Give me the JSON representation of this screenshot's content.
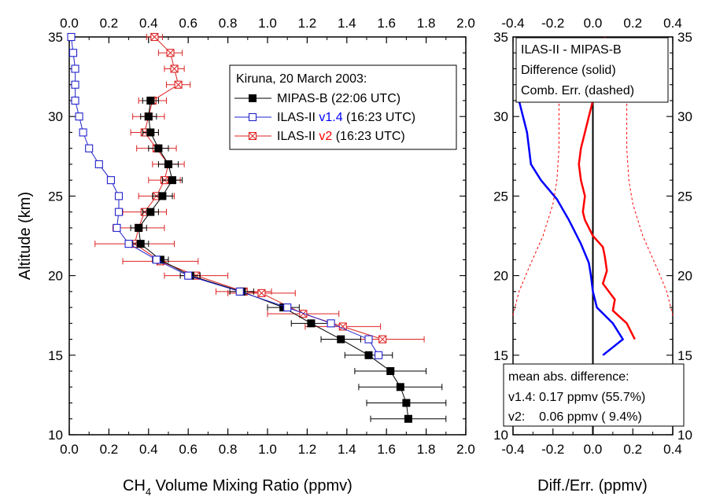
{
  "chart_data": [
    {
      "type": "line",
      "xlabel_main": "CH",
      "xlabel_sub": "4",
      "xlabel_rest": " Volume Mixing Ratio (ppmv)",
      "ylabel": "Altitude (km)",
      "xlim": [
        0.0,
        2.0
      ],
      "ylim": [
        10,
        35
      ],
      "x_ticks": [
        "0.0",
        "0.2",
        "0.4",
        "0.6",
        "0.8",
        "1.0",
        "1.2",
        "1.4",
        "1.6",
        "1.8",
        "2.0"
      ],
      "y_ticks": [
        "10",
        "15",
        "20",
        "25",
        "30",
        "35"
      ],
      "legend": {
        "title": "Kiruna, 20 March 2003:",
        "placement": "top-right",
        "entries": [
          {
            "label_a": "MIPAS-B (22:06 UTC)",
            "label_v": "",
            "label_b": "",
            "color": "#000000",
            "v_color": "#000000"
          },
          {
            "label_a": "ILAS-II ",
            "label_v": "v1.4",
            "label_b": " (16:23 UTC)",
            "color": "#2222cc",
            "v_color": "#0000ff"
          },
          {
            "label_a": "ILAS-II ",
            "label_v": "v2",
            "label_b": " (16:23 UTC)",
            "color": "#dd2222",
            "v_color": "#ff0000"
          }
        ]
      },
      "series": [
        {
          "name": "MIPAS-B (22:06 UTC)",
          "color": "#000000",
          "marker": "filled-square",
          "points": [
            [
              1.71,
              11.0,
              0.19
            ],
            [
              1.7,
              12.0,
              0.2
            ],
            [
              1.67,
              13.0,
              0.21
            ],
            [
              1.62,
              14.0,
              0.18
            ],
            [
              1.51,
              15.0,
              0.12
            ],
            [
              1.37,
              16.0,
              0.1
            ],
            [
              1.22,
              17.0,
              0.1
            ],
            [
              1.08,
              18.0,
              0.08
            ],
            [
              0.87,
              19.0,
              0.06
            ],
            [
              0.61,
              20.0,
              0.05
            ],
            [
              0.46,
              21.0,
              0.04
            ],
            [
              0.36,
              22.0,
              0.04
            ],
            [
              0.35,
              23.0,
              0.04
            ],
            [
              0.41,
              24.0,
              0.04
            ],
            [
              0.47,
              25.0,
              0.05
            ],
            [
              0.52,
              26.0,
              0.05
            ],
            [
              0.5,
              27.0,
              0.05
            ],
            [
              0.45,
              28.0,
              0.05
            ],
            [
              0.41,
              29.0,
              0.04
            ],
            [
              0.4,
              30.0,
              0.04
            ],
            [
              0.41,
              31.0,
              0.04
            ]
          ]
        },
        {
          "name": "ILAS-II v1.4 (16:23 UTC)",
          "color": "#2222cc",
          "marker": "open-square",
          "points": [
            [
              1.56,
              15.0
            ],
            [
              1.51,
              16.0
            ],
            [
              1.32,
              17.0
            ],
            [
              1.1,
              18.0
            ],
            [
              0.86,
              19.0
            ],
            [
              0.6,
              20.0
            ],
            [
              0.44,
              21.0
            ],
            [
              0.3,
              22.0
            ],
            [
              0.24,
              23.0
            ],
            [
              0.25,
              24.0
            ],
            [
              0.25,
              25.0
            ],
            [
              0.21,
              26.0
            ],
            [
              0.15,
              27.0
            ],
            [
              0.1,
              28.0
            ],
            [
              0.07,
              29.0
            ],
            [
              0.05,
              30.0
            ],
            [
              0.03,
              31.0
            ],
            [
              0.03,
              32.0
            ],
            [
              0.03,
              33.0
            ],
            [
              0.02,
              34.0
            ],
            [
              0.01,
              35.0
            ]
          ]
        },
        {
          "name": "ILAS-II v2 (16:23 UTC)",
          "color": "#dd2222",
          "marker": "crossed-square",
          "points": [
            [
              1.58,
              16.0,
              0.21
            ],
            [
              1.38,
              16.8,
              0.19
            ],
            [
              1.18,
              17.6,
              0.18
            ],
            [
              0.97,
              18.9,
              0.17
            ],
            [
              0.88,
              19.0,
              0.14
            ],
            [
              0.64,
              20.0,
              0.16
            ],
            [
              0.46,
              20.9,
              0.19
            ],
            [
              0.33,
              22.0,
              0.2
            ],
            [
              0.35,
              23.0,
              0.13
            ],
            [
              0.38,
              24.0,
              0.11
            ],
            [
              0.44,
              25.0,
              0.09
            ],
            [
              0.48,
              26.0,
              0.08
            ],
            [
              0.5,
              27.0,
              0.08
            ],
            [
              0.44,
              28.0,
              0.1
            ],
            [
              0.38,
              29.0,
              0.07
            ],
            [
              0.4,
              30.0,
              0.08
            ],
            [
              0.42,
              31.0,
              0.07
            ],
            [
              0.55,
              32.0,
              0.06
            ],
            [
              0.53,
              33.0,
              0.05
            ],
            [
              0.51,
              34.0,
              0.06
            ],
            [
              0.43,
              35.0,
              0.04
            ]
          ]
        }
      ]
    },
    {
      "type": "line",
      "xlabel": "Diff./Err. (ppmv)",
      "xlim": [
        -0.4,
        0.4
      ],
      "ylim": [
        10,
        35
      ],
      "x_ticks": [
        "-0.4",
        "-0.2",
        "0.0",
        "0.2",
        "0.4"
      ],
      "y_ticks": [
        "10",
        "15",
        "20",
        "25",
        "30",
        "35"
      ],
      "zero_line": true,
      "legend": {
        "placement": "top",
        "lines": [
          "ILAS-II - MIPAS-B",
          "Difference (solid)",
          "Comb. Err. (dashed)"
        ]
      },
      "summary": {
        "title": "mean abs. difference:",
        "rows": [
          {
            "text": "v1.4: 0.17 ppmv (55.7%)",
            "color": "#0000ff"
          },
          {
            "text": "v2:    0.06 ppmv ( 9.4%)",
            "color": "#ff0000"
          }
        ]
      },
      "series": [
        {
          "name": "v1.4 difference",
          "color": "#0000ff",
          "style": "solid",
          "points": [
            [
              0.05,
              15.0
            ],
            [
              0.15,
              16.0
            ],
            [
              0.1,
              17.0
            ],
            [
              0.02,
              18.0
            ],
            [
              0.0,
              19.0
            ],
            [
              -0.01,
              20.0
            ],
            [
              -0.02,
              20.8
            ],
            [
              -0.06,
              22.0
            ],
            [
              -0.12,
              23.5
            ],
            [
              -0.18,
              24.8
            ],
            [
              -0.26,
              26.0
            ],
            [
              -0.31,
              27.0
            ],
            [
              -0.32,
              28.0
            ],
            [
              -0.33,
              29.0
            ],
            [
              -0.35,
              30.0
            ],
            [
              -0.37,
              31.0
            ]
          ]
        },
        {
          "name": "v2 difference",
          "color": "#ff0000",
          "style": "solid",
          "points": [
            [
              0.21,
              16.0
            ],
            [
              0.17,
              17.0
            ],
            [
              0.1,
              17.8
            ],
            [
              0.11,
              18.5
            ],
            [
              0.05,
              19.5
            ],
            [
              0.07,
              20.3
            ],
            [
              0.06,
              21.2
            ],
            [
              0.05,
              21.8
            ],
            [
              0.0,
              22.5
            ],
            [
              -0.04,
              23.5
            ],
            [
              -0.05,
              24.0
            ],
            [
              -0.04,
              25.0
            ],
            [
              -0.06,
              26.0
            ],
            [
              -0.07,
              27.0
            ],
            [
              -0.06,
              28.0
            ],
            [
              -0.04,
              29.0
            ],
            [
              -0.02,
              30.0
            ],
            [
              0.0,
              31.0
            ],
            [
              0.02,
              32.0
            ],
            [
              0.03,
              33.0
            ],
            [
              0.05,
              34.0
            ],
            [
              0.06,
              35.0
            ]
          ]
        },
        {
          "name": "combined error",
          "color": "#ff0000",
          "style": "dashed",
          "points": [
            [
              0.4,
              17.5
            ],
            [
              0.37,
              19.0
            ],
            [
              0.32,
              20.5
            ],
            [
              0.25,
              22.5
            ],
            [
              0.2,
              24.5
            ],
            [
              0.18,
              26.0
            ],
            [
              0.17,
              28.0
            ],
            [
              0.17,
              30.0
            ],
            [
              0.17,
              32.0
            ],
            [
              0.16,
              34.0
            ],
            [
              0.16,
              35.0
            ]
          ],
          "mirror": true
        }
      ]
    }
  ]
}
